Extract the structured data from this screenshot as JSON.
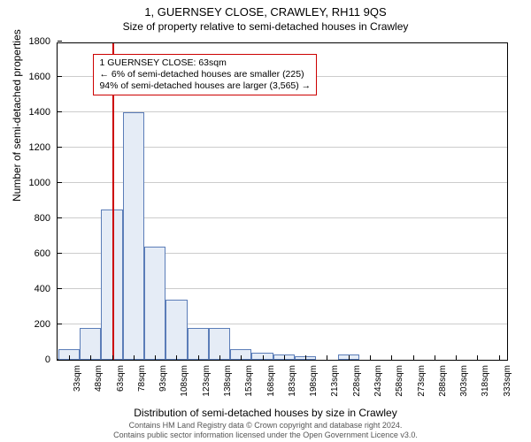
{
  "title": "1, GUERNSEY CLOSE, CRAWLEY, RH11 9QS",
  "subtitle": "Size of property relative to semi-detached houses in Crawley",
  "ylabel": "Number of semi-detached properties",
  "xlabel": "Distribution of semi-detached houses by size in Crawley",
  "footer_line1": "Contains HM Land Registry data © Crown copyright and database right 2024.",
  "footer_line2": "Contains public sector information licensed under the Open Government Licence v3.0.",
  "annotation": {
    "line1": "1 GUERNSEY CLOSE: 63sqm",
    "line2": "← 6% of semi-detached houses are smaller (225)",
    "line3": "94% of semi-detached houses are larger (3,565) →"
  },
  "chart": {
    "type": "histogram",
    "ylim": [
      0,
      1800
    ],
    "ytick_step": 200,
    "xtick_labels": [
      "33sqm",
      "48sqm",
      "63sqm",
      "78sqm",
      "93sqm",
      "108sqm",
      "123sqm",
      "138sqm",
      "153sqm",
      "168sqm",
      "183sqm",
      "198sqm",
      "213sqm",
      "228sqm",
      "243sqm",
      "258sqm",
      "273sqm",
      "288sqm",
      "303sqm",
      "318sqm",
      "333sqm"
    ],
    "xtick_step_sqm": 15,
    "x_min_sqm": 25,
    "x_max_sqm": 340,
    "bars": [
      {
        "x_sqm": 33,
        "value": 60
      },
      {
        "x_sqm": 48,
        "value": 180
      },
      {
        "x_sqm": 63,
        "value": 850
      },
      {
        "x_sqm": 78,
        "value": 1400
      },
      {
        "x_sqm": 93,
        "value": 640
      },
      {
        "x_sqm": 108,
        "value": 340
      },
      {
        "x_sqm": 123,
        "value": 180
      },
      {
        "x_sqm": 138,
        "value": 180
      },
      {
        "x_sqm": 153,
        "value": 60
      },
      {
        "x_sqm": 168,
        "value": 40
      },
      {
        "x_sqm": 183,
        "value": 30
      },
      {
        "x_sqm": 198,
        "value": 20
      },
      {
        "x_sqm": 213,
        "value": 0
      },
      {
        "x_sqm": 228,
        "value": 30
      },
      {
        "x_sqm": 243,
        "value": 0
      },
      {
        "x_sqm": 258,
        "value": 0
      },
      {
        "x_sqm": 273,
        "value": 0
      },
      {
        "x_sqm": 288,
        "value": 0
      },
      {
        "x_sqm": 303,
        "value": 0
      },
      {
        "x_sqm": 318,
        "value": 0
      },
      {
        "x_sqm": 333,
        "value": 0
      }
    ],
    "bar_fill": "#e5ecf6",
    "bar_stroke": "#5b7db8",
    "grid_color": "#cccccc",
    "background_color": "#ffffff",
    "refline_sqm": 63,
    "refline_color": "#cc0000",
    "title_fontsize": 13,
    "subtitle_fontsize": 12,
    "label_fontsize": 12,
    "tick_fontsize": 11,
    "annotation_fontsize": 10.5
  }
}
